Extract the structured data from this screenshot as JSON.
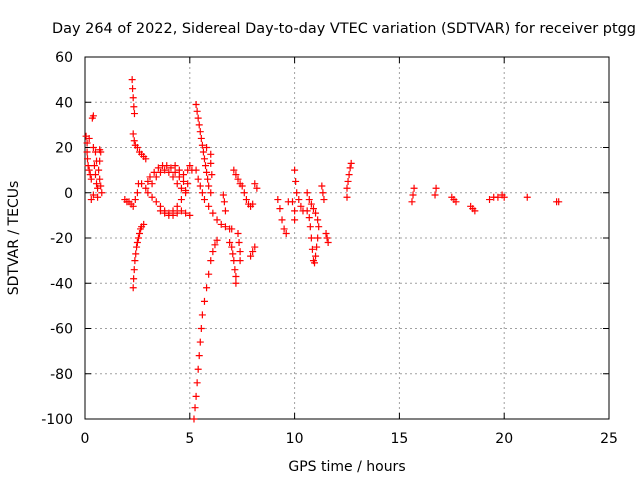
{
  "chart_data": {
    "type": "scatter",
    "title": "Day 264 of 2022, Sidereal Day-to-day VTEC variation (SDTVAR) for receiver ptgg",
    "xlabel": "GPS time / hours",
    "ylabel": "SDTVAR / TECUs",
    "xlim": [
      0,
      25
    ],
    "ylim": [
      -100,
      60
    ],
    "xticks": [
      0,
      5,
      10,
      15,
      20,
      25
    ],
    "yticks": [
      -100,
      -80,
      -60,
      -40,
      -20,
      0,
      20,
      40,
      60
    ],
    "grid": true,
    "marker": "+",
    "color": "#ff0000",
    "series": [
      {
        "name": "SDTVAR",
        "points": [
          [
            0.05,
            25
          ],
          [
            0.1,
            22
          ],
          [
            0.1,
            18
          ],
          [
            0.12,
            15
          ],
          [
            0.15,
            12
          ],
          [
            0.2,
            10
          ],
          [
            0.25,
            8
          ],
          [
            0.3,
            6
          ],
          [
            0.2,
            24
          ],
          [
            0.35,
            33
          ],
          [
            0.4,
            34
          ],
          [
            0.4,
            20
          ],
          [
            0.45,
            12
          ],
          [
            0.5,
            8
          ],
          [
            0.55,
            4
          ],
          [
            0.6,
            2
          ],
          [
            0.6,
            -2
          ],
          [
            0.5,
            18
          ],
          [
            0.55,
            14
          ],
          [
            0.65,
            10
          ],
          [
            0.7,
            6
          ],
          [
            0.75,
            3
          ],
          [
            0.8,
            0
          ],
          [
            0.7,
            19
          ],
          [
            0.75,
            18
          ],
          [
            0.7,
            14
          ],
          [
            0.3,
            -3
          ],
          [
            0.4,
            -1
          ],
          [
            1.9,
            -3
          ],
          [
            2.0,
            -4
          ],
          [
            2.1,
            -4
          ],
          [
            2.2,
            -5
          ],
          [
            2.25,
            50
          ],
          [
            2.27,
            46
          ],
          [
            2.3,
            42
          ],
          [
            2.33,
            38
          ],
          [
            2.36,
            35
          ],
          [
            2.3,
            26
          ],
          [
            2.35,
            23
          ],
          [
            2.4,
            21
          ],
          [
            2.5,
            20
          ],
          [
            2.6,
            18
          ],
          [
            2.7,
            17
          ],
          [
            2.8,
            16
          ],
          [
            2.9,
            15
          ],
          [
            2.3,
            -42
          ],
          [
            2.32,
            -38
          ],
          [
            2.35,
            -34
          ],
          [
            2.38,
            -30
          ],
          [
            2.42,
            -27
          ],
          [
            2.46,
            -24
          ],
          [
            2.5,
            -22
          ],
          [
            2.55,
            -20
          ],
          [
            2.6,
            -18
          ],
          [
            2.65,
            -16
          ],
          [
            2.7,
            -15
          ],
          [
            2.8,
            -14
          ],
          [
            2.3,
            -6
          ],
          [
            2.4,
            -3
          ],
          [
            2.5,
            0
          ],
          [
            2.55,
            4
          ],
          [
            2.7,
            4
          ],
          [
            2.9,
            2
          ],
          [
            3.0,
            5
          ],
          [
            3.1,
            7
          ],
          [
            3.3,
            9
          ],
          [
            3.5,
            11
          ],
          [
            3.7,
            12
          ],
          [
            3.9,
            12
          ],
          [
            4.1,
            11
          ],
          [
            4.3,
            9
          ],
          [
            4.5,
            7
          ],
          [
            4.7,
            5
          ],
          [
            4.9,
            4
          ],
          [
            3.0,
            0
          ],
          [
            3.2,
            -2
          ],
          [
            3.4,
            -4
          ],
          [
            3.6,
            -6
          ],
          [
            3.8,
            -8
          ],
          [
            4.0,
            -9
          ],
          [
            4.2,
            -8
          ],
          [
            4.4,
            -6
          ],
          [
            4.6,
            -3
          ],
          [
            4.8,
            0
          ],
          [
            3.2,
            4
          ],
          [
            3.4,
            7
          ],
          [
            3.6,
            9
          ],
          [
            3.8,
            10
          ],
          [
            4.0,
            9
          ],
          [
            4.2,
            7
          ],
          [
            4.4,
            4
          ],
          [
            4.6,
            2
          ],
          [
            4.8,
            1
          ],
          [
            3.6,
            -8
          ],
          [
            3.8,
            -9
          ],
          [
            4.0,
            -10
          ],
          [
            4.2,
            -10
          ],
          [
            4.4,
            -9
          ],
          [
            4.6,
            -8
          ],
          [
            4.8,
            -9
          ],
          [
            5.0,
            -10
          ],
          [
            4.3,
            12
          ],
          [
            4.5,
            10
          ],
          [
            4.7,
            8
          ],
          [
            4.9,
            10
          ],
          [
            5.0,
            12
          ],
          [
            5.1,
            10
          ],
          [
            5.3,
            39
          ],
          [
            5.35,
            36
          ],
          [
            5.4,
            33
          ],
          [
            5.45,
            30
          ],
          [
            5.5,
            27
          ],
          [
            5.55,
            24
          ],
          [
            5.6,
            21
          ],
          [
            5.65,
            18
          ],
          [
            5.7,
            15
          ],
          [
            5.75,
            12
          ],
          [
            5.8,
            9
          ],
          [
            5.85,
            6
          ],
          [
            5.9,
            3
          ],
          [
            6.0,
            0
          ],
          [
            5.2,
            -100
          ],
          [
            5.25,
            -95
          ],
          [
            5.3,
            -90
          ],
          [
            5.35,
            -84
          ],
          [
            5.4,
            -78
          ],
          [
            5.45,
            -72
          ],
          [
            5.5,
            -66
          ],
          [
            5.55,
            -60
          ],
          [
            5.6,
            -54
          ],
          [
            5.7,
            -48
          ],
          [
            5.8,
            -42
          ],
          [
            5.9,
            -36
          ],
          [
            6.0,
            -30
          ],
          [
            6.1,
            -26
          ],
          [
            6.2,
            -23
          ],
          [
            6.3,
            -21
          ],
          [
            5.3,
            10
          ],
          [
            5.4,
            6
          ],
          [
            5.5,
            3
          ],
          [
            5.6,
            0
          ],
          [
            5.7,
            -3
          ],
          [
            5.9,
            -6
          ],
          [
            6.1,
            -9
          ],
          [
            6.3,
            -12
          ],
          [
            6.5,
            -14
          ],
          [
            6.7,
            -15
          ],
          [
            6.9,
            -16
          ],
          [
            7.0,
            -16
          ],
          [
            5.8,
            20
          ],
          [
            6.0,
            17
          ],
          [
            6.0,
            13
          ],
          [
            6.05,
            8
          ],
          [
            6.6,
            -1
          ],
          [
            6.65,
            -4
          ],
          [
            6.7,
            -8
          ],
          [
            6.9,
            -22
          ],
          [
            7.0,
            -24
          ],
          [
            7.05,
            -27
          ],
          [
            7.1,
            -30
          ],
          [
            7.15,
            -34
          ],
          [
            7.2,
            -37
          ],
          [
            7.2,
            -40
          ],
          [
            7.3,
            -18
          ],
          [
            7.35,
            -22
          ],
          [
            7.4,
            -26
          ],
          [
            7.4,
            -30
          ],
          [
            7.1,
            10
          ],
          [
            7.2,
            8
          ],
          [
            7.3,
            6
          ],
          [
            7.4,
            4
          ],
          [
            7.5,
            3
          ],
          [
            7.6,
            0
          ],
          [
            7.7,
            -3
          ],
          [
            7.8,
            -5
          ],
          [
            7.9,
            -6
          ],
          [
            8.0,
            -5
          ],
          [
            8.1,
            4
          ],
          [
            8.2,
            2
          ],
          [
            7.9,
            -28
          ],
          [
            8.0,
            -26
          ],
          [
            8.1,
            -24
          ],
          [
            9.2,
            -3
          ],
          [
            9.3,
            -7
          ],
          [
            9.4,
            -12
          ],
          [
            9.5,
            -16
          ],
          [
            9.6,
            -18
          ],
          [
            9.7,
            -4
          ],
          [
            9.9,
            -4
          ],
          [
            10.0,
            -8
          ],
          [
            10.0,
            -12
          ],
          [
            10.0,
            10
          ],
          [
            10.05,
            5
          ],
          [
            10.1,
            0
          ],
          [
            10.2,
            -3
          ],
          [
            10.3,
            -6
          ],
          [
            10.4,
            -8
          ],
          [
            10.6,
            -8
          ],
          [
            10.7,
            -11
          ],
          [
            10.75,
            -15
          ],
          [
            10.8,
            -20
          ],
          [
            10.85,
            -25
          ],
          [
            10.9,
            -30
          ],
          [
            10.95,
            -31
          ],
          [
            11.0,
            -28
          ],
          [
            11.05,
            -24
          ],
          [
            11.1,
            -20
          ],
          [
            10.6,
            0
          ],
          [
            10.7,
            -3
          ],
          [
            10.8,
            -5
          ],
          [
            10.9,
            -7
          ],
          [
            11.0,
            -9
          ],
          [
            11.1,
            -12
          ],
          [
            11.15,
            -15
          ],
          [
            11.3,
            3
          ],
          [
            11.35,
            0
          ],
          [
            11.4,
            -3
          ],
          [
            11.5,
            -18
          ],
          [
            11.55,
            -20
          ],
          [
            11.6,
            -22
          ],
          [
            12.5,
            -2
          ],
          [
            12.5,
            2
          ],
          [
            12.55,
            5
          ],
          [
            12.6,
            8
          ],
          [
            12.65,
            11
          ],
          [
            12.7,
            13
          ],
          [
            15.6,
            -4
          ],
          [
            15.65,
            -1
          ],
          [
            15.7,
            2
          ],
          [
            16.7,
            -1
          ],
          [
            16.75,
            2
          ],
          [
            17.5,
            -2
          ],
          [
            17.6,
            -3
          ],
          [
            17.7,
            -4
          ],
          [
            18.4,
            -6
          ],
          [
            18.5,
            -7
          ],
          [
            18.6,
            -8
          ],
          [
            19.3,
            -3
          ],
          [
            19.5,
            -2
          ],
          [
            19.7,
            -2
          ],
          [
            19.9,
            -1
          ],
          [
            20.0,
            -2
          ],
          [
            21.1,
            -2
          ],
          [
            22.5,
            -4
          ],
          [
            22.6,
            -4
          ]
        ]
      }
    ]
  }
}
